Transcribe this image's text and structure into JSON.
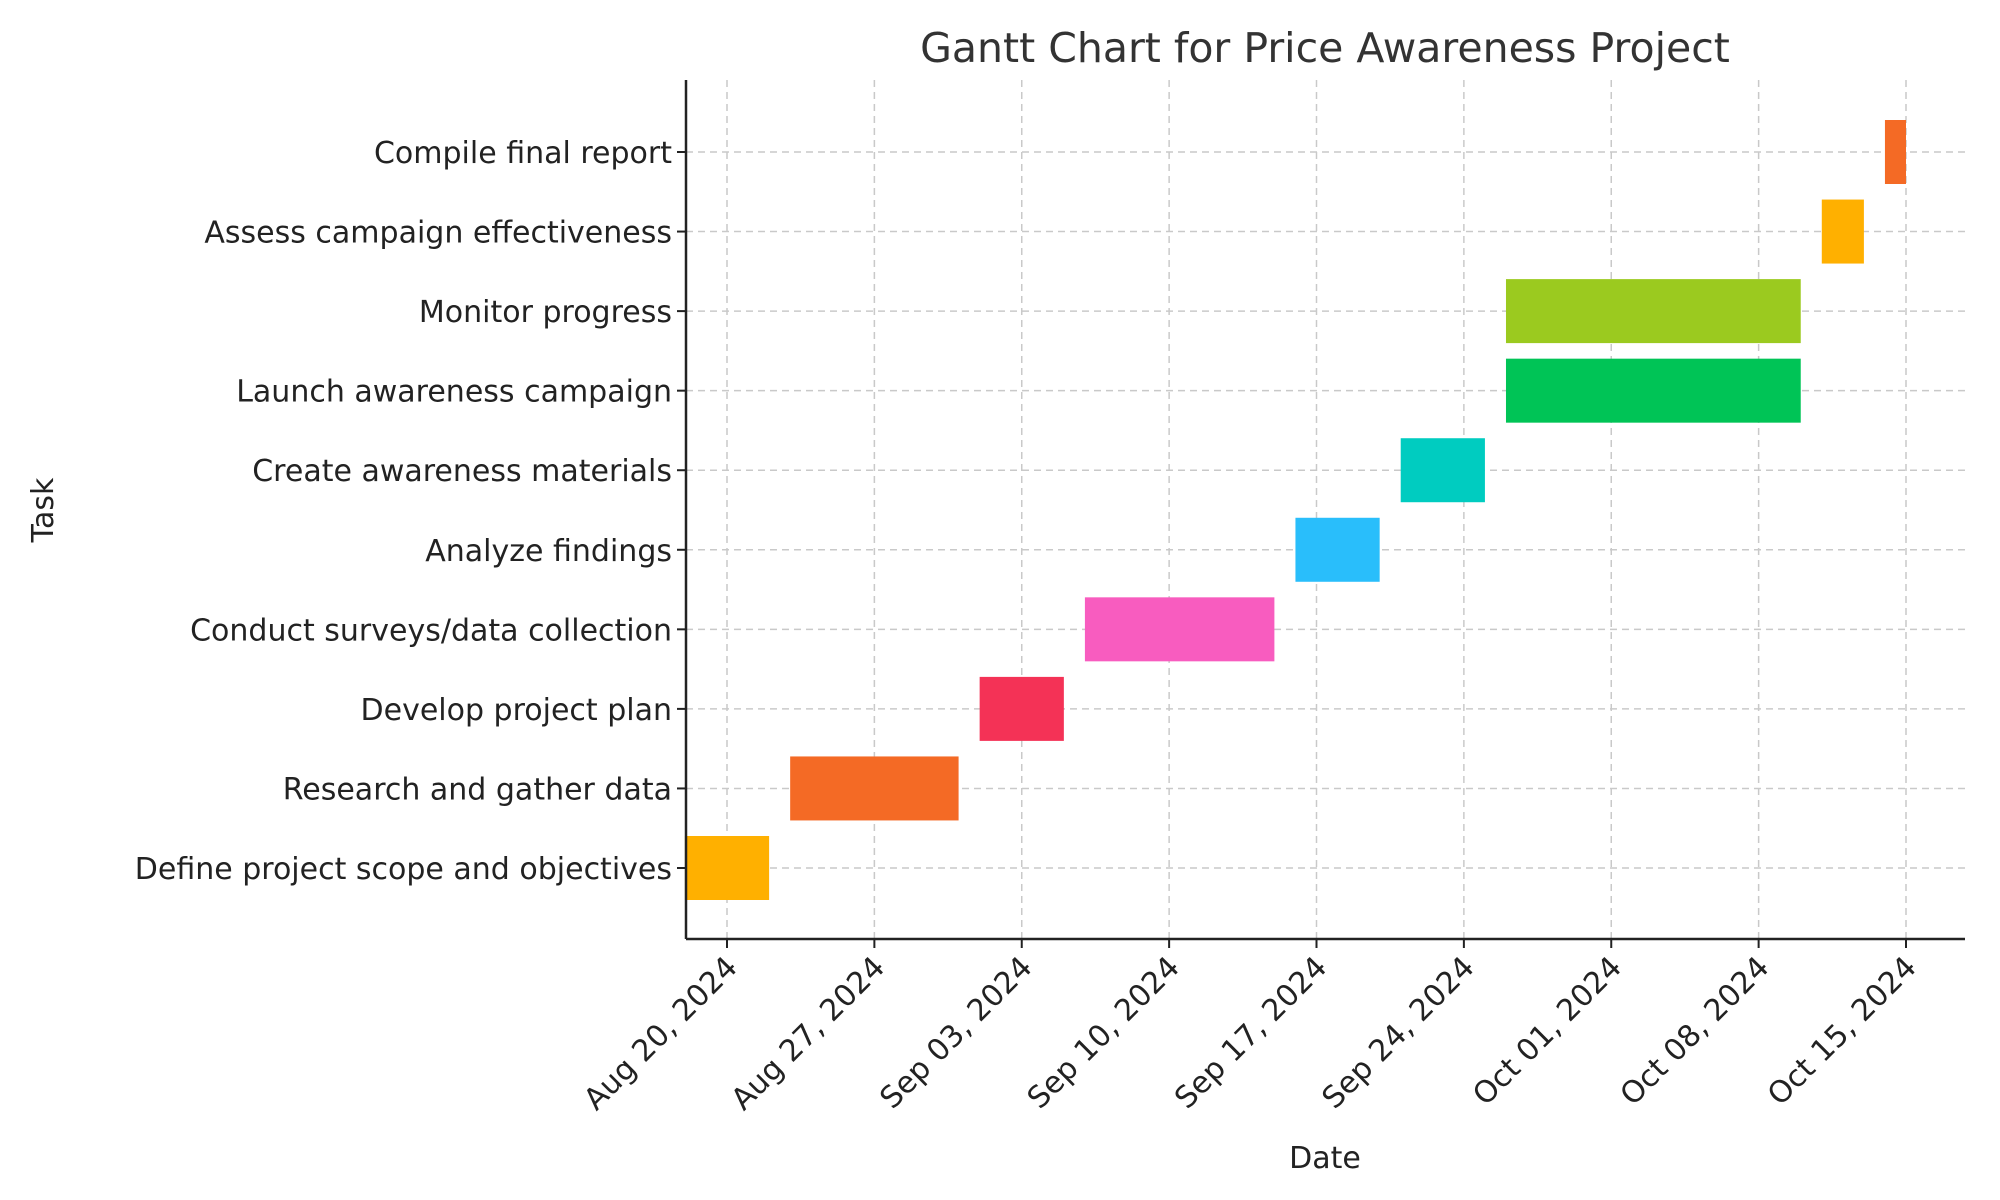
{
  "chart_data": {
    "type": "gantt",
    "title": "Gantt Chart for Price Awareness Project",
    "xlabel": "Date",
    "ylabel": "Task",
    "xlim": [
      "2024-08-17",
      "2024-10-16"
    ],
    "x_ticks": [
      {
        "date": "2024-08-20",
        "label": "Aug 20, 2024"
      },
      {
        "date": "2024-08-27",
        "label": "Aug 27, 2024"
      },
      {
        "date": "2024-09-03",
        "label": "Sep 03, 2024"
      },
      {
        "date": "2024-09-10",
        "label": "Sep 10, 2024"
      },
      {
        "date": "2024-09-17",
        "label": "Sep 17, 2024"
      },
      {
        "date": "2024-09-24",
        "label": "Sep 24, 2024"
      },
      {
        "date": "2024-10-01",
        "label": "Oct 01, 2024"
      },
      {
        "date": "2024-10-08",
        "label": "Oct 08, 2024"
      },
      {
        "date": "2024-10-15",
        "label": "Oct 15, 2024"
      }
    ],
    "grid": true,
    "tasks": [
      {
        "name": "Define project scope and objectives",
        "start": "2024-08-18",
        "end": "2024-08-22",
        "color": "#FFB000"
      },
      {
        "name": "Research and gather data",
        "start": "2024-08-23",
        "end": "2024-08-31",
        "color": "#F46A25"
      },
      {
        "name": "Develop project plan",
        "start": "2024-09-01",
        "end": "2024-09-05",
        "color": "#F43256"
      },
      {
        "name": "Conduct surveys/data collection",
        "start": "2024-09-06",
        "end": "2024-09-15",
        "color": "#F85CBF"
      },
      {
        "name": "Analyze findings",
        "start": "2024-09-16",
        "end": "2024-09-20",
        "color": "#29BEFB"
      },
      {
        "name": "Create awareness materials",
        "start": "2024-09-21",
        "end": "2024-09-25",
        "color": "#00CCC0"
      },
      {
        "name": "Launch awareness campaign",
        "start": "2024-09-26",
        "end": "2024-10-10",
        "color": "#00C456"
      },
      {
        "name": "Monitor progress",
        "start": "2024-09-26",
        "end": "2024-10-10",
        "color": "#9BCA1F"
      },
      {
        "name": "Assess campaign effectiveness",
        "start": "2024-10-11",
        "end": "2024-10-13",
        "color": "#FFB000"
      },
      {
        "name": "Compile final report",
        "start": "2024-10-14",
        "end": "2024-10-15",
        "color": "#F46A25"
      }
    ]
  }
}
